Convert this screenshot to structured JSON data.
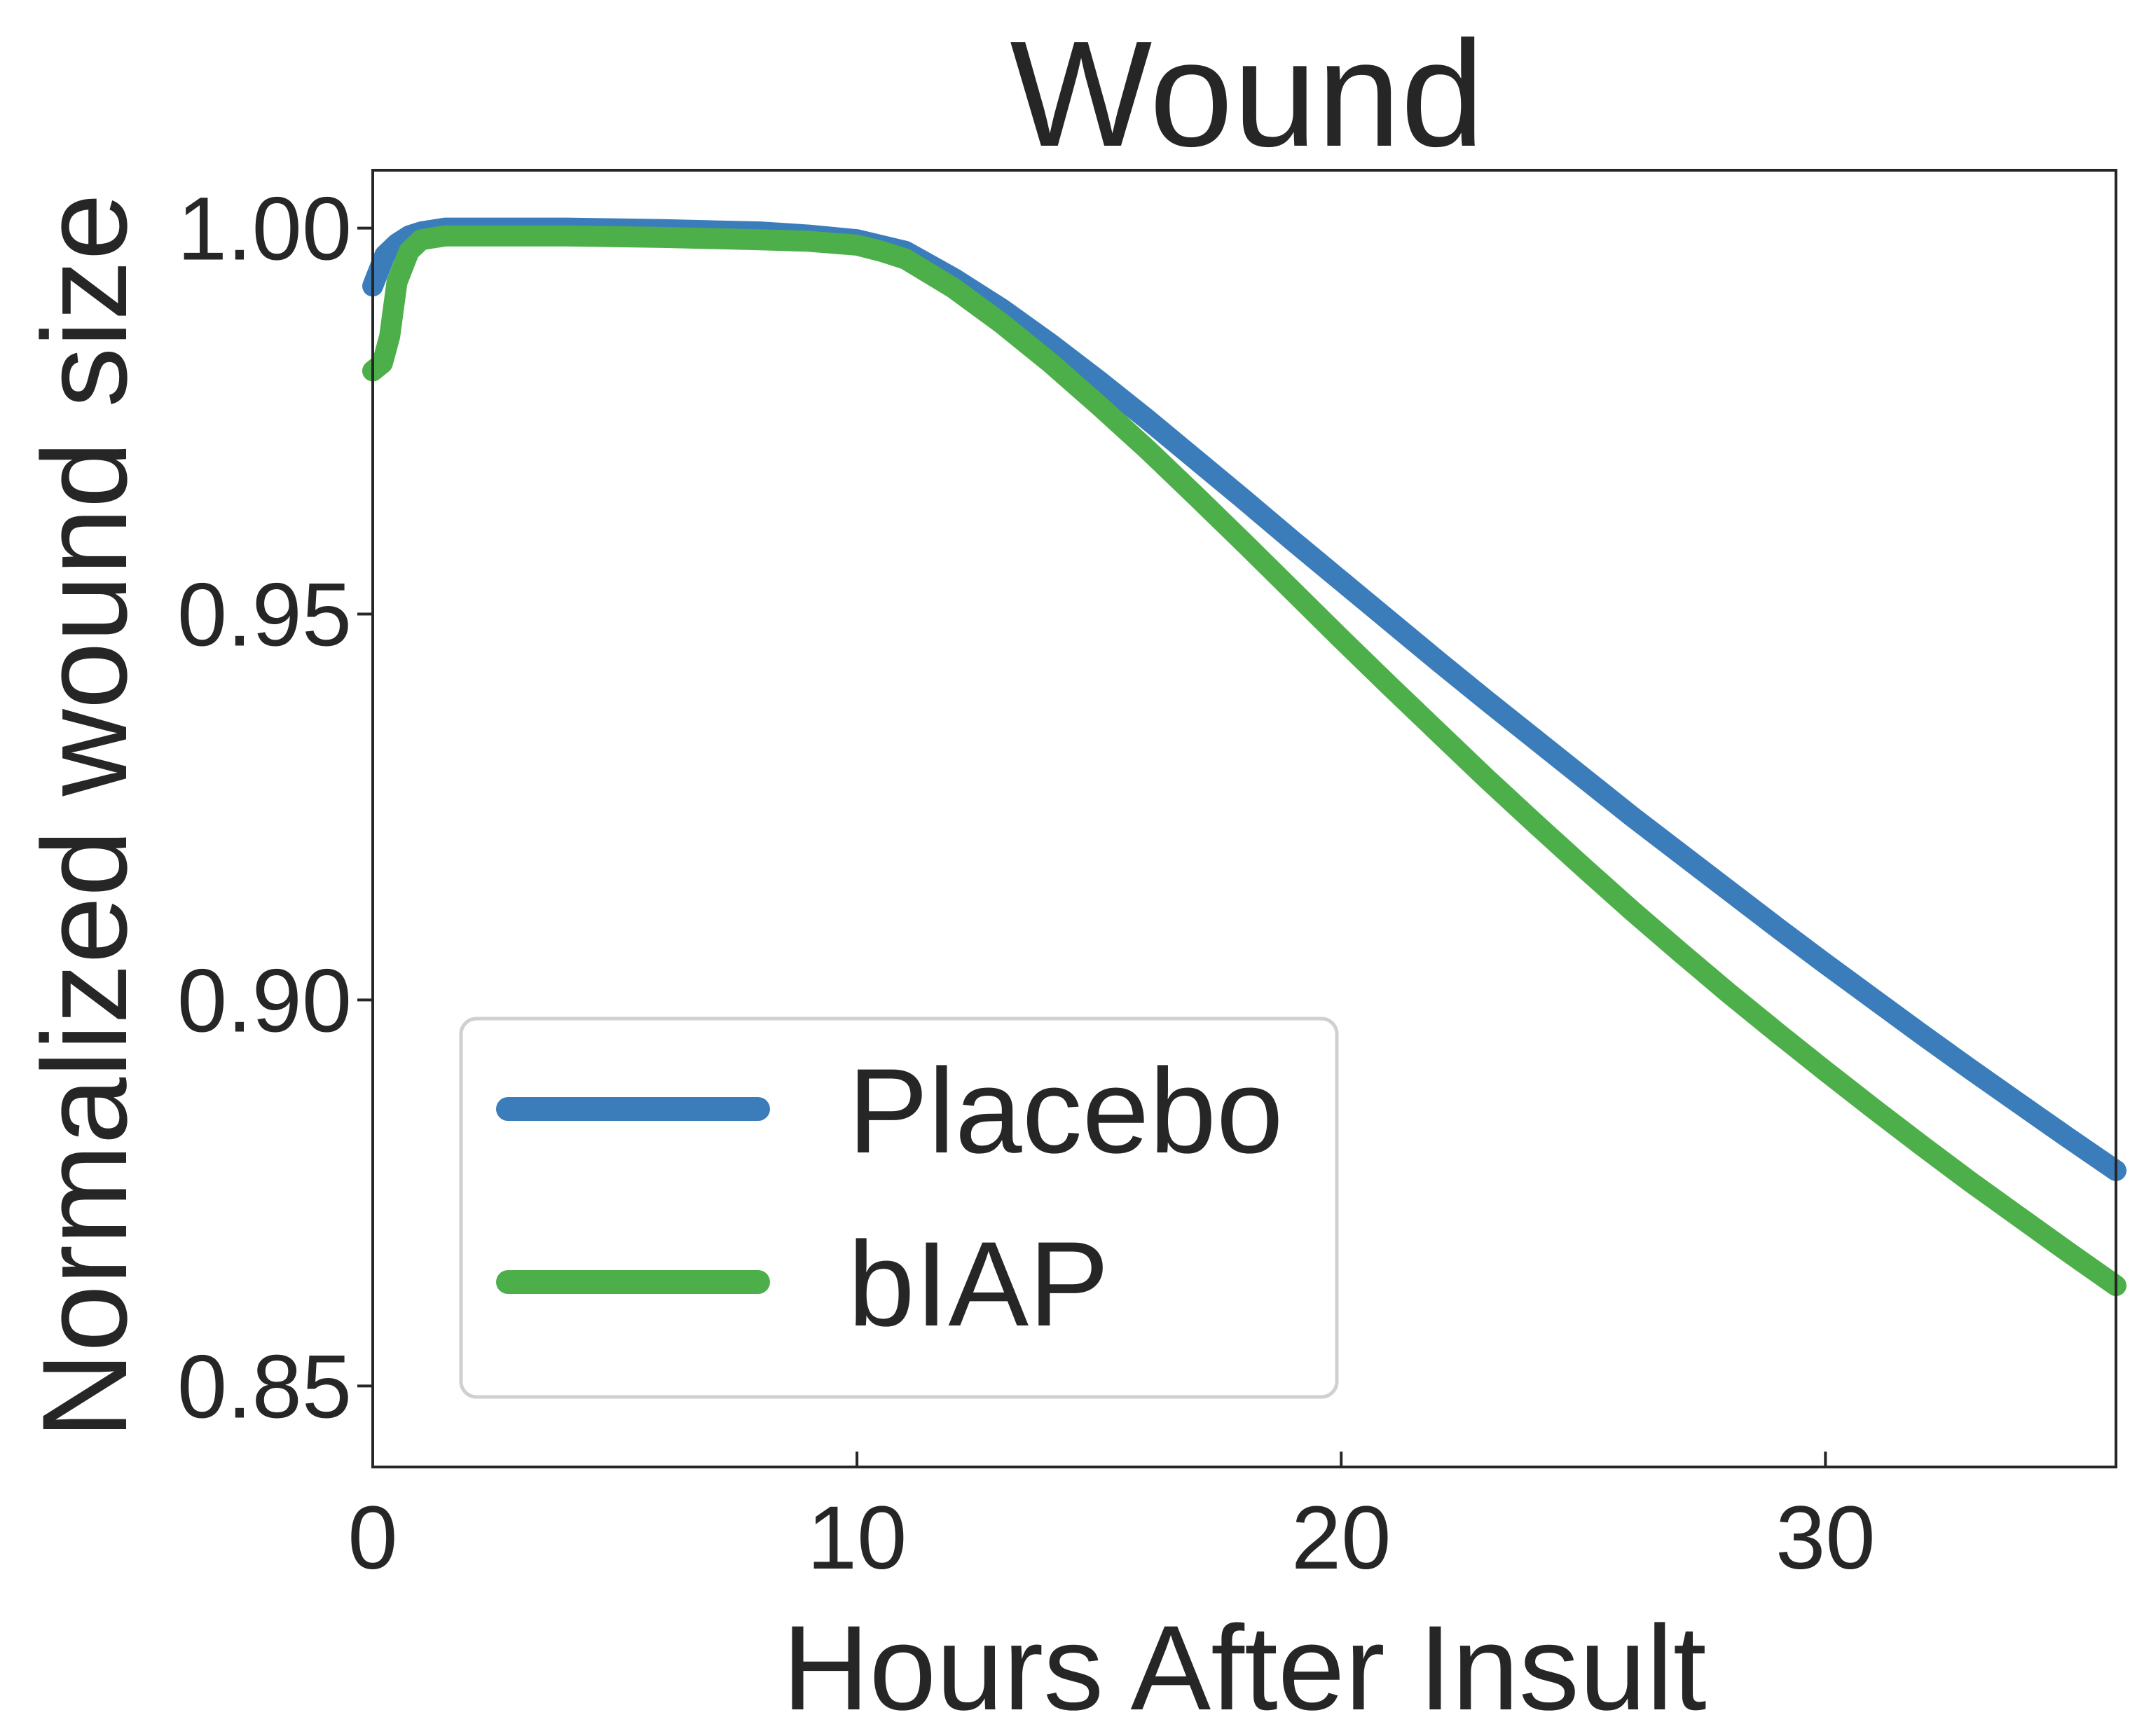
{
  "chart_data": {
    "type": "line",
    "title": "Wound",
    "xlabel": "Hours After Insult",
    "ylabel": "Normalized wound size",
    "xlim": [
      0,
      36
    ],
    "ylim": [
      0.8395,
      1.0075
    ],
    "xticks": [
      0,
      10,
      20,
      30
    ],
    "xtick_labels": [
      "0",
      "10",
      "20",
      "30"
    ],
    "yticks": [
      0.85,
      0.9,
      0.95,
      1.0
    ],
    "ytick_labels": [
      "0.85",
      "0.90",
      "0.95",
      "1.00"
    ],
    "grid": false,
    "legend": {
      "position": "lower-left",
      "entries": [
        "Placebo",
        "bIAP"
      ]
    },
    "series": [
      {
        "name": "Placebo",
        "color": "#3a7dba",
        "x": [
          0,
          0.25,
          0.5,
          0.75,
          1,
          1.5,
          2,
          3,
          4,
          6,
          8,
          9,
          10,
          11,
          12,
          13,
          14,
          15,
          16,
          17,
          18,
          19,
          20,
          21,
          22,
          23,
          24,
          25,
          26,
          27,
          28,
          29,
          30,
          31,
          32,
          33,
          34,
          35,
          36
        ],
        "y": [
          0.9925,
          0.9965,
          0.998,
          0.999,
          0.9995,
          1.0,
          1.0,
          1.0,
          1.0,
          0.9998,
          0.9995,
          0.9991,
          0.9985,
          0.997,
          0.9935,
          0.9895,
          0.985,
          0.9802,
          0.9752,
          0.97,
          0.9648,
          0.9595,
          0.9543,
          0.9491,
          0.9439,
          0.9388,
          0.9338,
          0.9288,
          0.9238,
          0.919,
          0.9142,
          0.9094,
          0.9047,
          0.9001,
          0.8955,
          0.891,
          0.8866,
          0.8822,
          0.8779
        ]
      },
      {
        "name": "bIAP",
        "color": "#4daf4a",
        "x": [
          0,
          0.2,
          0.35,
          0.5,
          0.75,
          1,
          1.5,
          2,
          3,
          4,
          6,
          8,
          9,
          10,
          10.5,
          11,
          12,
          13,
          14,
          15,
          16,
          17,
          18,
          19,
          20,
          21,
          22,
          23,
          24,
          25,
          26,
          27,
          28,
          29,
          30,
          31,
          32,
          33,
          34,
          35,
          36
        ],
        "y": [
          0.9815,
          0.9825,
          0.986,
          0.993,
          0.997,
          0.9985,
          0.999,
          0.999,
          0.999,
          0.999,
          0.9988,
          0.9985,
          0.9983,
          0.9978,
          0.997,
          0.996,
          0.9922,
          0.9876,
          0.9825,
          0.977,
          0.9713,
          0.9653,
          0.9592,
          0.953,
          0.9468,
          0.9407,
          0.9347,
          0.9287,
          0.9229,
          0.9172,
          0.9116,
          0.9062,
          0.9009,
          0.8958,
          0.8908,
          0.8859,
          0.8811,
          0.8764,
          0.8719,
          0.8674,
          0.863
        ]
      }
    ]
  }
}
